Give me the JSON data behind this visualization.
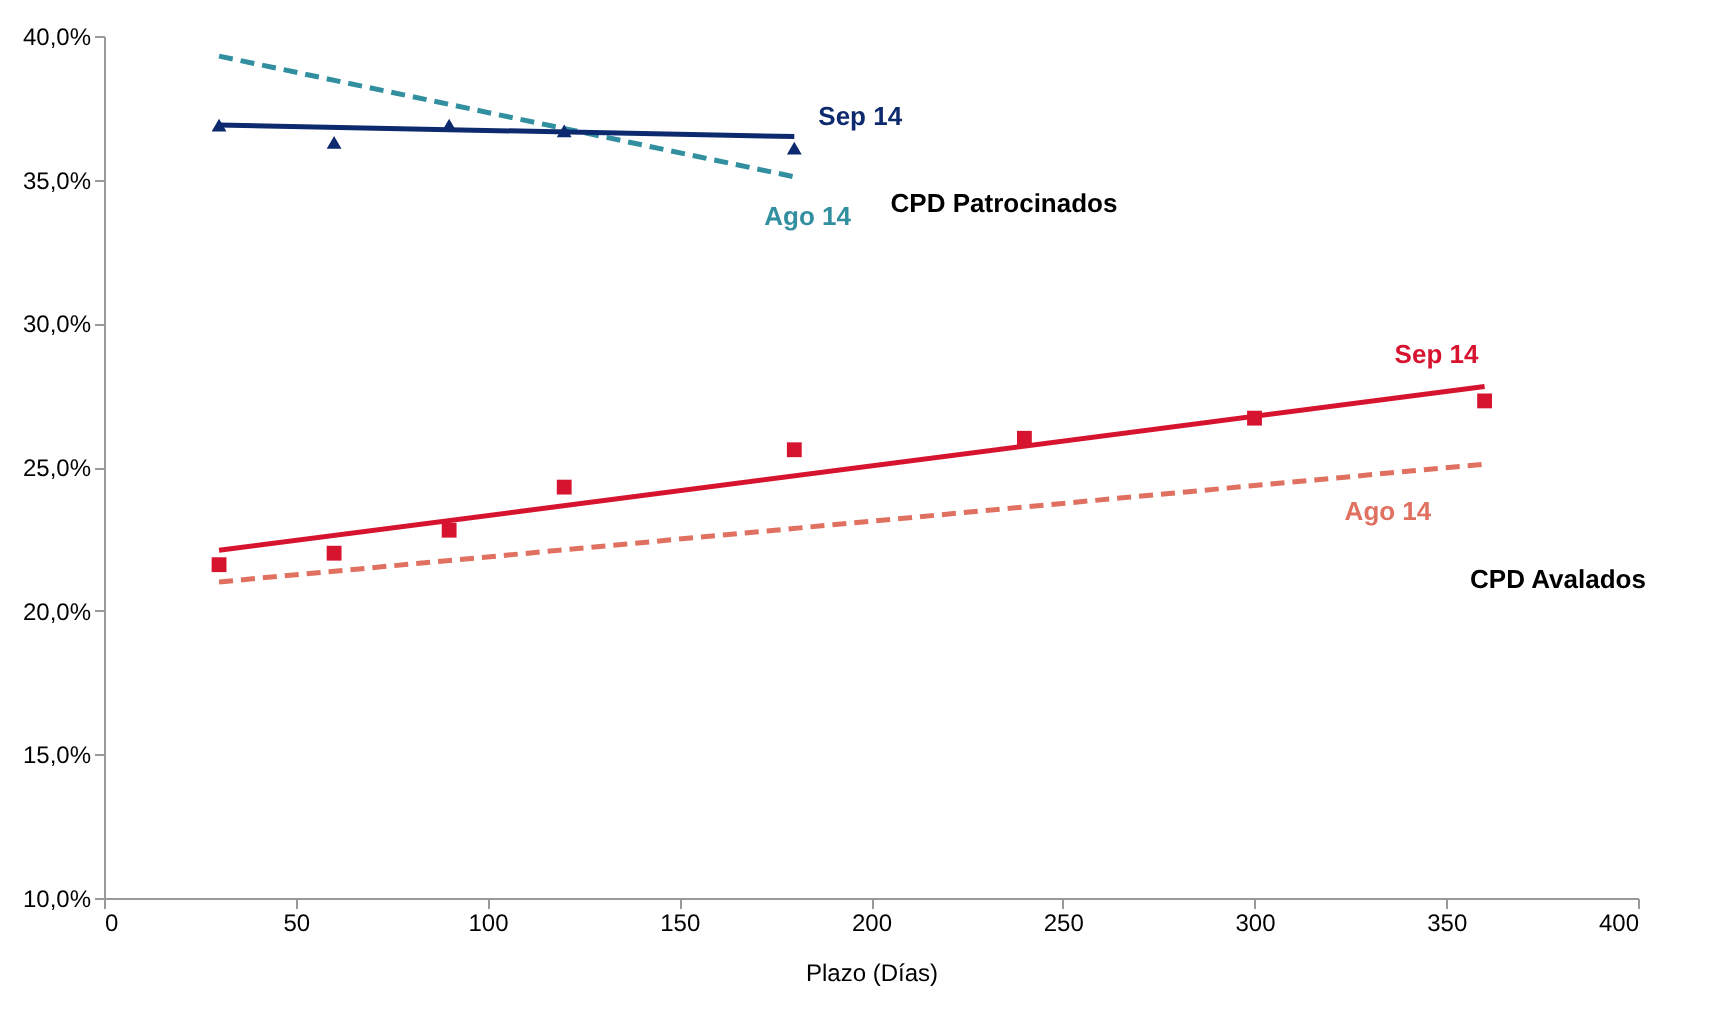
{
  "chart_data": {
    "type": "scatter",
    "xlabel": "Plazo (Días)",
    "xlim": [
      0,
      400
    ],
    "xticks": [
      0,
      50,
      100,
      150,
      200,
      250,
      300,
      350,
      400
    ],
    "ylim": [
      10,
      40
    ],
    "yticks": [
      {
        "value": 10,
        "label": "10,0%"
      },
      {
        "value": 15,
        "label": "15,0%"
      },
      {
        "value": 20,
        "label": "20,0%"
      },
      {
        "value": 25,
        "label": "25,0%"
      },
      {
        "value": 30,
        "label": "30,0%"
      },
      {
        "value": 35,
        "label": "35,0%"
      },
      {
        "value": 40,
        "label": "40,0%"
      }
    ],
    "grid": false,
    "legend": false,
    "series": [
      {
        "name": "Ago 14",
        "type": "line",
        "color": "#318fa0",
        "line_style": "dashed",
        "x": [
          30,
          180
        ],
        "values": [
          39.3,
          35.1
        ]
      },
      {
        "name": "Ago 14",
        "type": "line",
        "color": "#e07060",
        "line_style": "dashed",
        "x": [
          30,
          360
        ],
        "values": [
          21.0,
          25.1
        ]
      },
      {
        "name": "Sep 14",
        "type": "line",
        "color": "#0d2a6e",
        "line_style": "solid",
        "x": [
          30,
          180
        ],
        "values": [
          36.9,
          36.5
        ]
      },
      {
        "name": "Sep 14",
        "type": "line",
        "color": "#d7142f",
        "line_style": "solid",
        "x": [
          30,
          360
        ],
        "values": [
          22.1,
          27.8
        ]
      },
      {
        "color": "#0d2a6e",
        "marker": "triangle",
        "x": [
          30,
          60,
          90,
          120,
          180
        ],
        "values": [
          36.9,
          36.3,
          36.9,
          36.7,
          36.1
        ]
      },
      {
        "color": "#d7142f",
        "marker": "square",
        "x": [
          30,
          60,
          90,
          120,
          180,
          240,
          300,
          360
        ],
        "values": [
          21.6,
          22.0,
          22.8,
          24.3,
          25.6,
          26.0,
          26.7,
          27.3
        ]
      }
    ],
    "annotations": [
      "CPD Patrocinados",
      "CPD Avalados"
    ]
  }
}
